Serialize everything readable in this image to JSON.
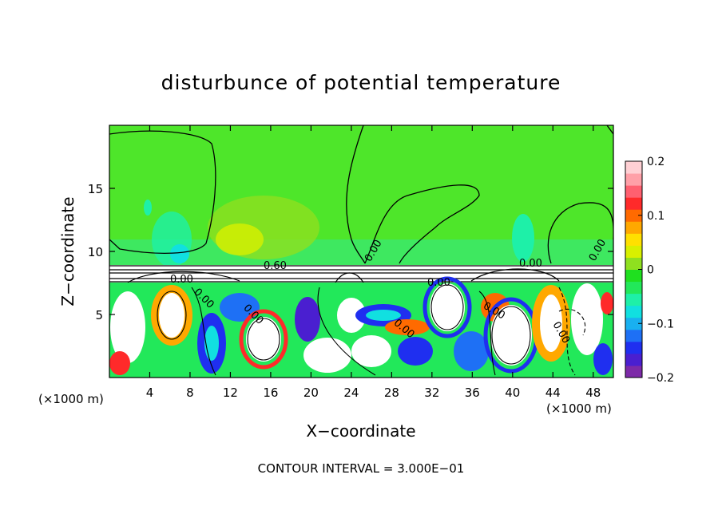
{
  "chart_data": {
    "type": "heatmap",
    "title": "disturbunce of potential temperature",
    "xlabel": "X−coordinate",
    "ylabel": "Z−coordinate",
    "x_unit_left": "(×1000 m)",
    "x_unit_right": "(×1000 m)",
    "xlim": [
      0,
      50
    ],
    "ylim": [
      0,
      20
    ],
    "x_ticks": [
      4,
      8,
      12,
      16,
      20,
      24,
      28,
      32,
      36,
      40,
      44,
      48
    ],
    "y_ticks": [
      5,
      10,
      15
    ],
    "colorbar": {
      "range": [
        -0.2,
        0.2
      ],
      "ticks": [
        {
          "value": 0.2,
          "label": "0.2"
        },
        {
          "value": 0.1,
          "label": "0.1"
        },
        {
          "value": 0,
          "label": "0"
        },
        {
          "value": -0.1,
          "label": "−0.1"
        },
        {
          "value": -0.2,
          "label": "−0.2"
        }
      ],
      "colors": [
        "#7d2aa8",
        "#4a1fd0",
        "#1f2ff0",
        "#1e70f5",
        "#19b0f0",
        "#11e0e0",
        "#1ef0a8",
        "#22e85a",
        "#1fe01f",
        "#8fe01f",
        "#d8f000",
        "#ffe000",
        "#ffa800",
        "#ff6a00",
        "#ff2a2a",
        "#ff6070",
        "#ffa0a8",
        "#ffd0d4"
      ]
    },
    "contour_labels": [
      "0.00",
      "0.60",
      "0.00",
      "0.00",
      "0.00",
      "0.00",
      "0.00",
      "0.00",
      "0.00",
      "0.00",
      "0.00"
    ],
    "contour_interval_text": "CONTOUR INTERVAL = 3.000E−01"
  }
}
